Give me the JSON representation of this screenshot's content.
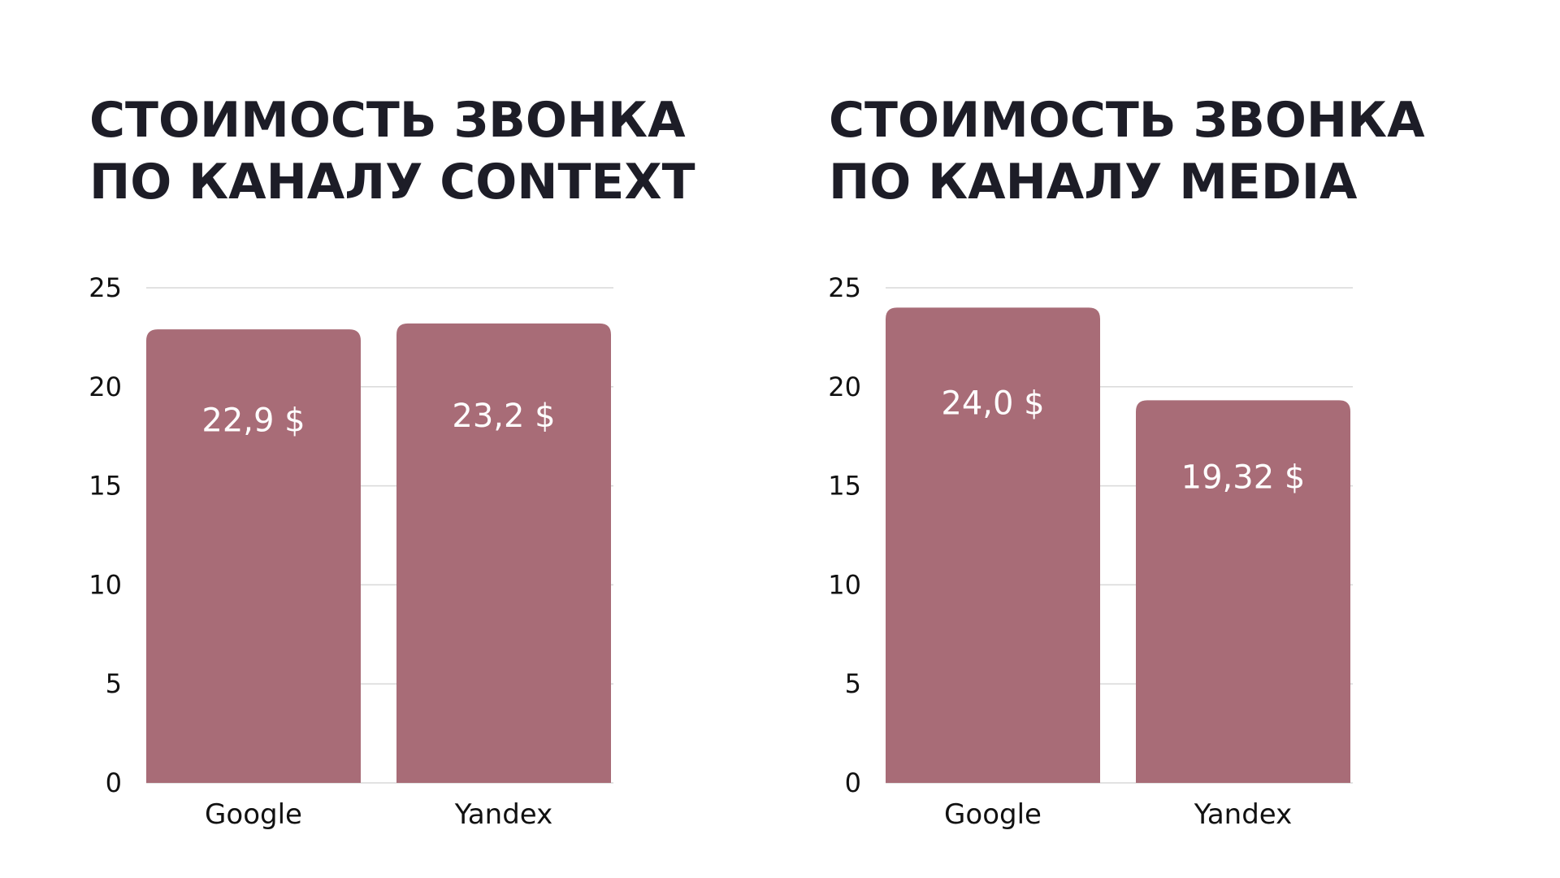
{
  "chart_data": [
    {
      "type": "bar",
      "title": "СТОИМОСТЬ ЗВОНКА ПО КАНАЛУ CONTEXT",
      "categories": [
        "Google",
        "Yandex"
      ],
      "values": [
        22.9,
        23.2
      ],
      "data_labels": [
        "22,9 $",
        "23,2 $"
      ],
      "yticks": [
        "0",
        "5",
        "10",
        "15",
        "20",
        "25"
      ],
      "ylim": [
        0,
        25
      ],
      "grid": true,
      "legend": "none",
      "bar_color": "#a86c77",
      "xlabel": "",
      "ylabel": ""
    },
    {
      "type": "bar",
      "title": "СТОИМОСТЬ ЗВОНКА ПО КАНАЛУ MEDIA",
      "categories": [
        "Google",
        "Yandex"
      ],
      "values": [
        24.0,
        19.32
      ],
      "data_labels": [
        "24,0 $",
        "19,32 $"
      ],
      "yticks": [
        "0",
        "5",
        "10",
        "15",
        "20",
        "25"
      ],
      "ylim": [
        0,
        25
      ],
      "grid": true,
      "legend": "none",
      "bar_color": "#a86c77",
      "xlabel": "",
      "ylabel": ""
    }
  ]
}
